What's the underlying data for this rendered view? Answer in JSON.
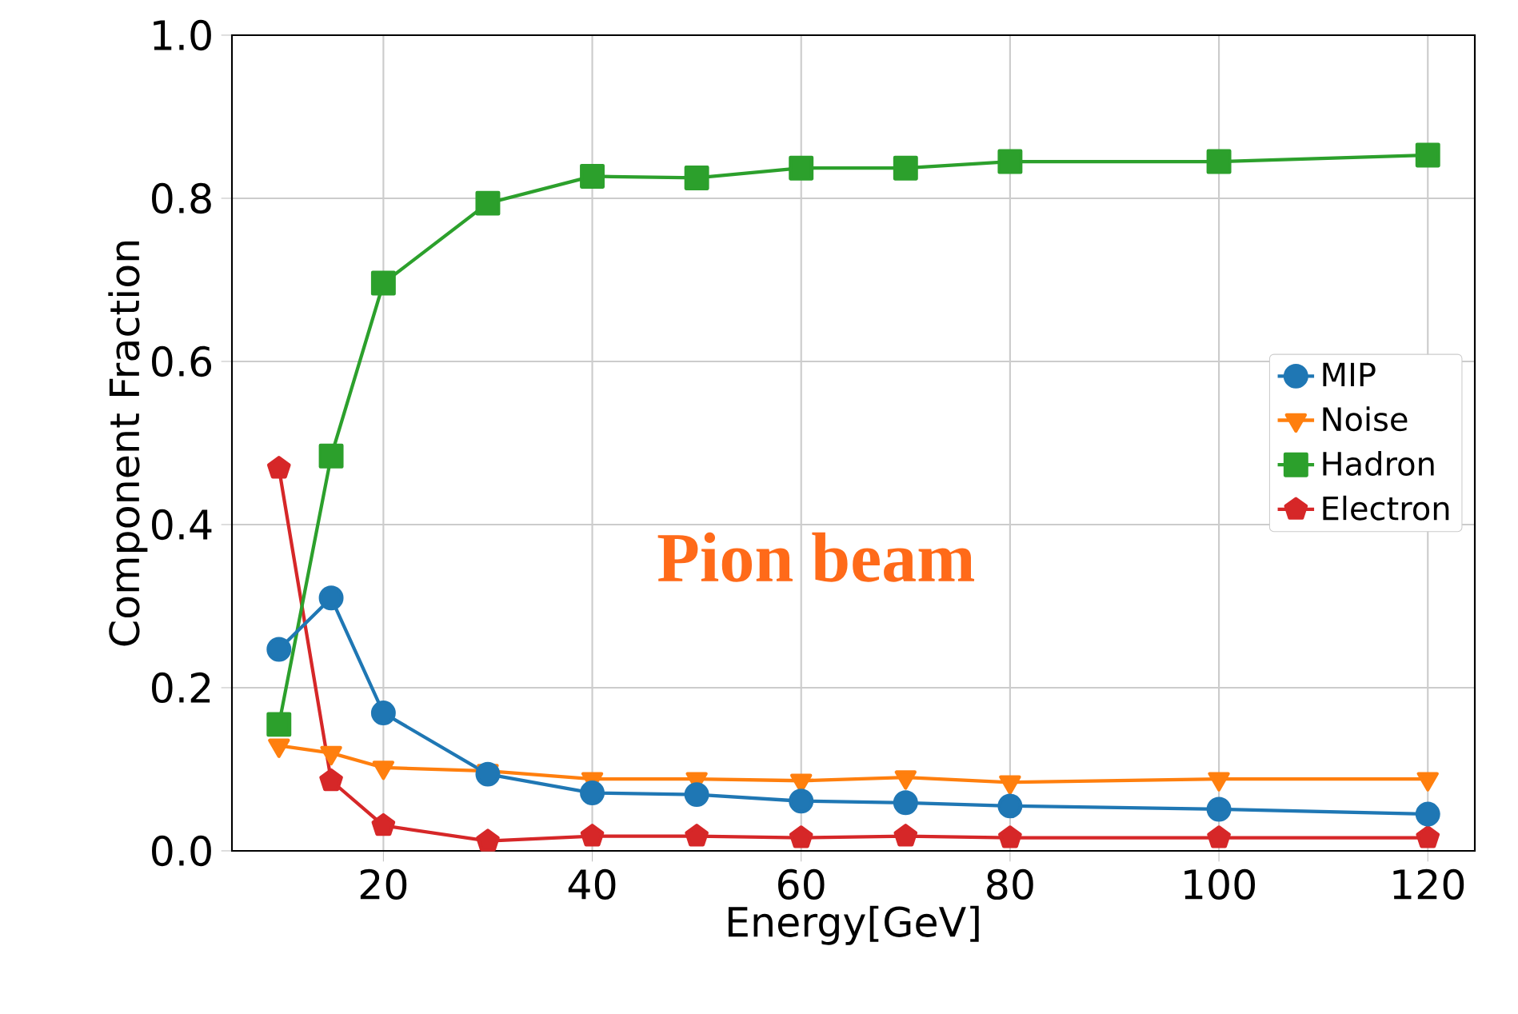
{
  "chart_data": {
    "type": "line",
    "xlabel": "Energy[GeV]",
    "ylabel": "Component Fraction",
    "x": [
      10,
      15,
      20,
      30,
      40,
      50,
      60,
      70,
      80,
      100,
      120
    ],
    "series": [
      {
        "name": "MIP",
        "color": "#1f77b4",
        "marker": "circle",
        "values": [
          0.247,
          0.31,
          0.169,
          0.094,
          0.071,
          0.069,
          0.061,
          0.059,
          0.055,
          0.051,
          0.045
        ]
      },
      {
        "name": "Noise",
        "color": "#ff7f0e",
        "marker": "triangle",
        "values": [
          0.129,
          0.12,
          0.102,
          0.098,
          0.088,
          0.088,
          0.086,
          0.09,
          0.084,
          0.088,
          0.088
        ]
      },
      {
        "name": "Hadron",
        "color": "#2ca02c",
        "marker": "square",
        "values": [
          0.155,
          0.484,
          0.696,
          0.794,
          0.827,
          0.825,
          0.837,
          0.837,
          0.845,
          0.845,
          0.853
        ]
      },
      {
        "name": "Electron",
        "color": "#d62728",
        "marker": "star",
        "values": [
          0.469,
          0.086,
          0.031,
          0.012,
          0.018,
          0.018,
          0.016,
          0.018,
          0.016,
          0.016,
          0.016
        ]
      }
    ],
    "annotations": [
      "Pion beam"
    ],
    "xlim": [
      5.5,
      124.5
    ],
    "ylim": [
      0,
      1
    ],
    "xticks": [
      20,
      40,
      60,
      80,
      100,
      120
    ],
    "yticks": [
      {
        "value": 0,
        "label": "0.0"
      },
      {
        "value": 0.2,
        "label": "0.2"
      },
      {
        "value": 0.4,
        "label": "0.4"
      },
      {
        "value": 0.6,
        "label": "0.6"
      },
      {
        "value": 0.8,
        "label": "0.8"
      },
      {
        "value": 1.0,
        "label": "1.0"
      }
    ],
    "grid": true,
    "legend": "right",
    "line_style": "solid"
  }
}
